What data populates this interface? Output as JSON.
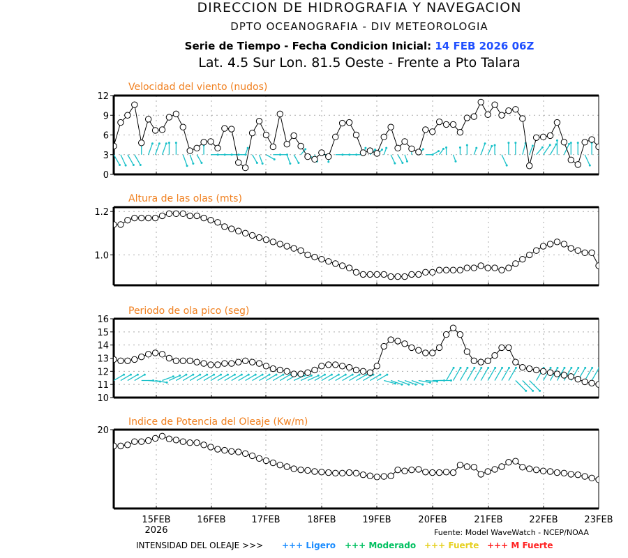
{
  "header": {
    "title": "DIRECCION DE HIDROGRAFIA Y NAVEGACION",
    "subtitle": "DPTO OCEANOGRAFIA - DIV METEOROLOGIA",
    "series_label": "Serie de Tiempo - Fecha Condicion Inicial:",
    "init_date": "14 FEB 2026 06Z",
    "location": "Lat. 4.5 Sur  Lon. 81.5 Oeste - Frente a Pto Talara"
  },
  "footer": {
    "source": "Fuente: Model WaveWatch - NCEP/NOAA",
    "intensity_label": "INTENSIDAD DEL OLEAJE >>>",
    "legend": [
      {
        "label": "+++ Ligero",
        "color": "#1a8cff"
      },
      {
        "label": "+++ Moderado",
        "color": "#00c060"
      },
      {
        "label": "+++ Fuerte",
        "color": "#e6d020"
      },
      {
        "label": "+++ M Fuerte",
        "color": "#ff2020"
      }
    ]
  },
  "colors": {
    "title": "#f08020",
    "arrows": "#18c0c8",
    "line": "#000000"
  },
  "chart_data": [
    {
      "type": "line",
      "title": "Velocidad del viento (nudos)",
      "ylim": [
        0,
        12
      ],
      "yticks": [
        "0",
        "3",
        "6",
        "9",
        "12"
      ],
      "ytick_values": [
        0,
        3,
        6,
        9,
        12
      ],
      "xticks": [
        "15FEB",
        "16FEB",
        "17FEB",
        "18FEB",
        "19FEB",
        "20FEB",
        "21FEB",
        "22FEB",
        "23FEB"
      ],
      "xtick_sub": "2026",
      "x_start_hours": -18,
      "x_step_hours": 3,
      "values": [
        4.3,
        7.9,
        9.0,
        10.6,
        4.8,
        8.4,
        6.7,
        6.8,
        8.7,
        9.2,
        7.2,
        3.6,
        4.0,
        4.9,
        5.0,
        4.0,
        7.0,
        6.9,
        1.8,
        1.0,
        6.3,
        8.1,
        6.0,
        4.2,
        9.2,
        4.6,
        5.9,
        4.3,
        2.7,
        2.3,
        3.3,
        2.7,
        5.7,
        7.8,
        7.9,
        6.0,
        3.3,
        3.6,
        3.2,
        5.7,
        7.2,
        4.0,
        5.0,
        3.9,
        3.4,
        6.8,
        6.5,
        8.0,
        7.6,
        7.6,
        6.4,
        8.6,
        8.8,
        11.0,
        9.1,
        10.6,
        9.0,
        9.7,
        9.9,
        8.5,
        1.3,
        5.6,
        5.7,
        5.9,
        7.9,
        4.9,
        2.2,
        1.5,
        4.9,
        5.3,
        4.2
      ],
      "arrow_dirs": [
        150,
        155,
        150,
        150,
        0,
        20,
        20,
        20,
        0,
        0,
        160,
        160,
        150,
        0,
        90,
        90,
        90,
        90,
        90,
        20,
        150,
        160,
        120,
        90,
        90,
        160,
        150,
        40,
        120,
        160,
        90,
        180,
        90,
        90,
        90,
        90,
        20,
        45,
        45,
        20,
        155,
        150,
        160,
        0,
        40,
        90,
        60,
        35,
        0,
        160,
        0,
        0,
        20,
        20,
        25,
        0,
        155,
        0,
        0,
        15,
        20,
        40,
        35,
        30,
        0,
        25,
        0,
        0,
        155,
        0,
        160
      ],
      "arrow_lens": [
        5,
        5,
        5,
        5,
        4,
        5,
        5,
        5,
        5,
        5,
        5,
        4,
        4,
        4,
        3,
        3,
        3,
        3,
        3,
        3,
        4,
        4,
        4,
        3,
        3,
        4,
        4,
        3,
        3,
        3,
        3,
        3,
        3,
        3,
        3,
        3,
        3,
        3,
        3,
        3,
        4,
        4,
        3,
        3,
        3,
        3,
        3,
        3,
        3,
        3,
        3,
        4,
        3,
        5,
        4,
        4,
        5,
        5,
        5,
        5,
        4,
        4,
        5,
        5,
        6,
        5,
        5,
        5,
        5,
        5,
        5
      ]
    },
    {
      "type": "line",
      "title": "Altura de las olas (mts)",
      "ylim": [
        0.86,
        1.22
      ],
      "yticks": [
        "1.0",
        "1.2"
      ],
      "ytick_values": [
        1.0,
        1.2
      ],
      "values": [
        1.14,
        1.14,
        1.16,
        1.17,
        1.17,
        1.17,
        1.17,
        1.18,
        1.19,
        1.19,
        1.19,
        1.18,
        1.18,
        1.17,
        1.16,
        1.15,
        1.13,
        1.12,
        1.11,
        1.1,
        1.09,
        1.08,
        1.07,
        1.06,
        1.05,
        1.04,
        1.03,
        1.02,
        1.0,
        0.99,
        0.98,
        0.97,
        0.96,
        0.95,
        0.94,
        0.92,
        0.91,
        0.91,
        0.91,
        0.91,
        0.9,
        0.9,
        0.9,
        0.91,
        0.91,
        0.92,
        0.92,
        0.93,
        0.93,
        0.93,
        0.93,
        0.94,
        0.94,
        0.95,
        0.94,
        0.94,
        0.93,
        0.94,
        0.96,
        0.98,
        1.0,
        1.02,
        1.04,
        1.05,
        1.06,
        1.05,
        1.03,
        1.02,
        1.01,
        1.01,
        0.95
      ]
    },
    {
      "type": "line",
      "title": "Periodo de ola pico (seg)",
      "ylim": [
        10,
        16
      ],
      "yticks": [
        "10",
        "11",
        "12",
        "13",
        "14",
        "15",
        "16"
      ],
      "ytick_values": [
        10,
        11,
        12,
        13,
        14,
        15,
        16
      ],
      "values": [
        12.9,
        12.8,
        12.8,
        12.9,
        13.1,
        13.3,
        13.4,
        13.3,
        13.0,
        12.8,
        12.8,
        12.8,
        12.7,
        12.6,
        12.5,
        12.5,
        12.6,
        12.6,
        12.7,
        12.8,
        12.7,
        12.6,
        12.4,
        12.2,
        12.1,
        12.0,
        11.8,
        11.8,
        11.9,
        12.1,
        12.4,
        12.5,
        12.5,
        12.4,
        12.3,
        12.1,
        12.0,
        11.9,
        12.4,
        13.9,
        14.4,
        14.3,
        14.1,
        13.8,
        13.6,
        13.4,
        13.4,
        13.8,
        14.8,
        15.3,
        14.8,
        13.5,
        12.8,
        12.7,
        12.8,
        13.2,
        13.8,
        13.8,
        12.7,
        12.3,
        12.2,
        12.1,
        12.0,
        11.9,
        11.8,
        11.7,
        11.6,
        11.4,
        11.2,
        11.1,
        11.0
      ],
      "arrow_dirs": [
        60,
        60,
        60,
        60,
        90,
        95,
        100,
        70,
        65,
        60,
        60,
        60,
        60,
        60,
        60,
        60,
        60,
        60,
        60,
        60,
        60,
        60,
        60,
        60,
        60,
        60,
        65,
        65,
        65,
        60,
        60,
        60,
        60,
        60,
        60,
        60,
        60,
        60,
        60,
        105,
        110,
        110,
        110,
        110,
        100,
        95,
        90,
        90,
        30,
        30,
        30,
        30,
        30,
        30,
        30,
        30,
        30,
        30,
        135,
        135,
        135,
        30,
        30,
        30,
        30,
        30,
        30,
        30,
        30,
        30,
        30
      ],
      "arrow_lens": [
        4,
        4,
        4,
        4,
        4,
        4,
        4,
        4,
        4,
        4,
        4,
        4,
        4,
        4,
        4,
        4,
        4,
        4,
        4,
        4,
        4,
        4,
        4,
        4,
        4,
        4,
        4,
        4,
        4,
        4,
        4,
        4,
        4,
        4,
        4,
        4,
        4,
        4,
        4,
        4,
        4,
        4,
        4,
        4,
        4,
        4,
        4,
        4,
        5,
        5,
        5,
        5,
        5,
        5,
        5,
        5,
        5,
        5,
        5,
        5,
        5,
        5,
        5,
        5,
        5,
        5,
        5,
        5,
        5,
        5,
        5
      ]
    },
    {
      "type": "line",
      "title": "Indice de Potencia del Oleaje (Kw/m)",
      "ylim": [
        5.5,
        20
      ],
      "yticks": [
        "20"
      ],
      "ytick_values": [
        20
      ],
      "values": [
        17.0,
        17.0,
        17.2,
        17.8,
        17.8,
        18.0,
        18.4,
        18.8,
        18.3,
        18.1,
        17.8,
        17.6,
        17.6,
        17.2,
        16.8,
        16.4,
        16.2,
        16.0,
        15.9,
        15.6,
        15.2,
        14.7,
        14.3,
        13.9,
        13.5,
        13.2,
        12.8,
        12.6,
        12.5,
        12.3,
        12.2,
        12.1,
        12.0,
        12.0,
        12.1,
        12.0,
        11.7,
        11.5,
        11.3,
        11.4,
        11.5,
        12.6,
        12.4,
        12.6,
        12.7,
        12.2,
        12.1,
        12.1,
        12.2,
        12.1,
        13.5,
        13.2,
        13.1,
        11.8,
        12.3,
        12.7,
        13.2,
        14.0,
        14.2,
        13.1,
        12.8,
        12.6,
        12.4,
        12.3,
        12.1,
        12.0,
        11.8,
        11.7,
        11.4,
        11.1,
        10.8
      ]
    }
  ]
}
